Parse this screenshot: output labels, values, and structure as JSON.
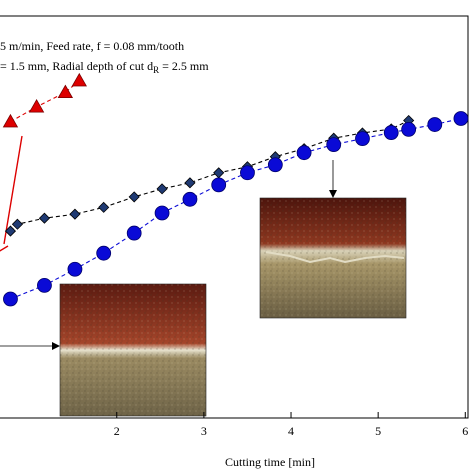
{
  "conditions": {
    "line1": "5 m/min,  Feed rate, f = 0.08 mm/tooth",
    "line2": "= 1.5 mm,  Radial depth of cut d",
    "line2_sub": "R",
    "line2_end": " = 2.5 mm"
  },
  "chart_data": {
    "type": "line",
    "xlabel": "Cutting time   [min]",
    "ylabel": "",
    "x_ticks": [
      2,
      3,
      4,
      5,
      6
    ],
    "xlim": [
      0.66,
      6.1
    ],
    "ylim": [
      0,
      1
    ],
    "series": [
      {
        "marker": "triangle",
        "color": "#dd0000",
        "x": [
          0.78,
          1.08,
          1.41,
          1.57
        ],
        "y": [
          0.737,
          0.774,
          0.81,
          0.839
        ]
      },
      {
        "marker": "diamond",
        "color": "#1f3a73",
        "x": [
          0.78,
          0.86,
          1.17,
          1.52,
          1.85,
          2.2,
          2.52,
          2.84,
          3.17,
          3.5,
          3.82,
          4.15,
          4.49,
          4.82,
          5.15,
          5.35
        ],
        "y": [
          0.465,
          0.482,
          0.497,
          0.507,
          0.524,
          0.55,
          0.57,
          0.585,
          0.61,
          0.625,
          0.65,
          0.67,
          0.696,
          0.709,
          0.719,
          0.74
        ]
      },
      {
        "marker": "circle",
        "color": "#0a0ad6",
        "x": [
          0.78,
          1.17,
          1.52,
          1.85,
          2.2,
          2.52,
          2.84,
          3.17,
          3.5,
          3.82,
          4.15,
          4.49,
          4.82,
          5.15,
          5.35,
          5.65,
          5.95
        ],
        "y": [
          0.296,
          0.33,
          0.37,
          0.41,
          0.46,
          0.51,
          0.544,
          0.58,
          0.61,
          0.63,
          0.66,
          0.68,
          0.695,
          0.71,
          0.718,
          0.73,
          0.745
        ]
      }
    ]
  },
  "insets": [
    {
      "label": "initial-flank-wear-photo",
      "colors": {
        "top": "#9a3a1f",
        "bottom": "#8a7a55"
      }
    },
    {
      "label": "worn-flank-photo",
      "colors": {
        "top": "#7a2a18",
        "bottom": "#7e7050"
      }
    }
  ]
}
